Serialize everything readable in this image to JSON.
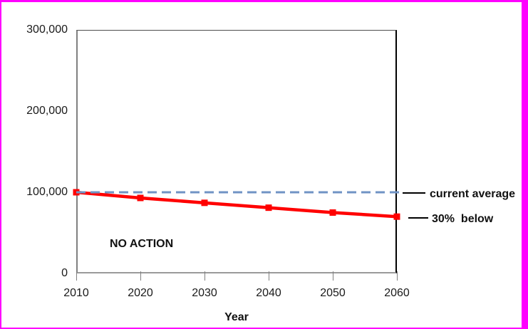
{
  "frame": {
    "border_color": "#ff00ff",
    "background": "#ffffff"
  },
  "chart_data": {
    "type": "line",
    "title": "",
    "xlabel": "Year",
    "ylabel": "",
    "x": [
      2010,
      2020,
      2030,
      2040,
      2050,
      2060
    ],
    "x_tick_labels": [
      "2010",
      "2020",
      "2030",
      "2040",
      "2050",
      "2060"
    ],
    "y_tick_labels": [
      "0",
      "100,000",
      "200,000",
      "300,000"
    ],
    "y_tick_values": [
      0,
      100000,
      200000,
      300000
    ],
    "xlim": [
      2010,
      2060
    ],
    "ylim": [
      0,
      300000
    ],
    "grid": false,
    "legend_position": "right-annotations",
    "series": [
      {
        "name": "NO ACTION",
        "color": "#ff0000",
        "marker": "square",
        "line_style": "solid",
        "values": [
          100000,
          93000,
          87000,
          81000,
          75000,
          70000
        ]
      },
      {
        "name": "current average",
        "color": "#7093c4",
        "marker": "none",
        "line_style": "dashed",
        "reference_value": 100000
      }
    ],
    "annotations": [
      {
        "id": "no_action",
        "text": "NO ACTION"
      },
      {
        "id": "current_average",
        "text": "current average"
      },
      {
        "id": "below_30",
        "text": "30%  below"
      }
    ]
  }
}
